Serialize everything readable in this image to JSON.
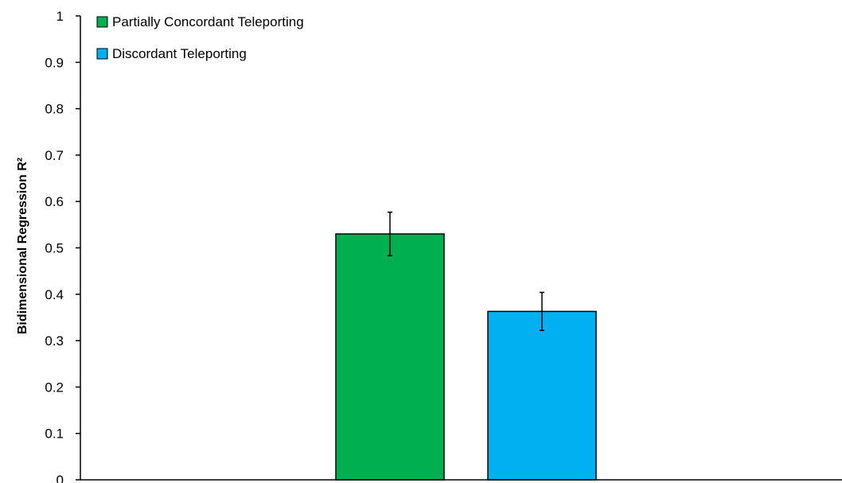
{
  "chart_data": {
    "type": "bar",
    "title": "",
    "xlabel": "",
    "ylabel": "Bidimensional Regression R²",
    "ylim": [
      0,
      1
    ],
    "yticks": [
      "0",
      "0.1",
      "0.2",
      "0.3",
      "0.4",
      "0.5",
      "0.6",
      "0.7",
      "0.8",
      "0.9",
      "1"
    ],
    "grid": false,
    "legend_position": "top-left",
    "series": [
      {
        "name": "Partially Concordant Teleporting",
        "value": 0.53,
        "error": 0.047,
        "color": "#00B050"
      },
      {
        "name": "Discordant Teleporting",
        "value": 0.363,
        "error": 0.041,
        "color": "#00B0F0"
      }
    ]
  }
}
